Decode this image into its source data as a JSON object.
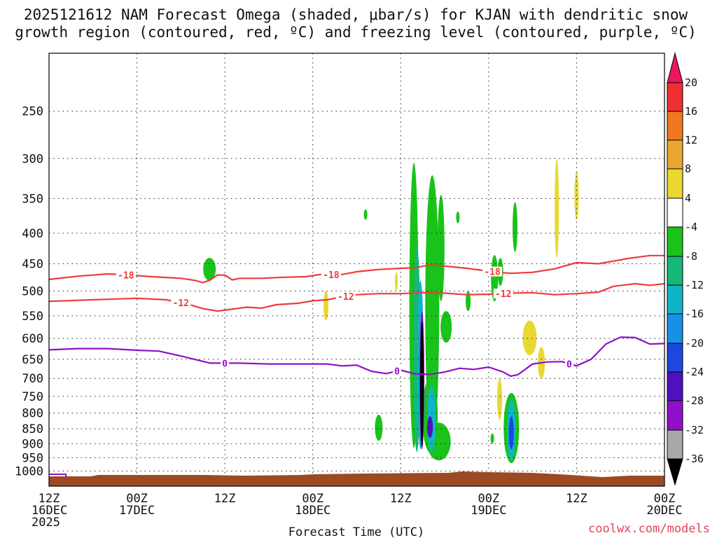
{
  "title_line1": "2025121612 NAM Forecast Omega (shaded, μbar/s) for KJAN with dendritic snow",
  "title_line2": "growth region (contoured, red, ºC) and freezing level (contoured, purple, ºC)",
  "credit": "coolwx.com/models",
  "xlabel": "Forecast Time (UTC)",
  "chart_data": {
    "type": "heatmap",
    "title": "2025121612 NAM Forecast Omega (shaded, μbar/s) for KJAN with dendritic snow growth region (contoured, red, ºC) and freezing level (contoured, purple, ºC)",
    "xlabel": "Forecast Time (UTC)",
    "ylabel": "",
    "x_range_hours": [
      0,
      84
    ],
    "y_range_hpa": [
      1060,
      200
    ],
    "y_scale": "log",
    "y_ticks": [
      250,
      300,
      350,
      400,
      450,
      500,
      550,
      600,
      650,
      700,
      750,
      800,
      850,
      900,
      950,
      1000
    ],
    "x_ticks": [
      {
        "hour": 0,
        "line1": "12Z",
        "line2": "16DEC",
        "line3": "2025"
      },
      {
        "hour": 12,
        "line1": "00Z",
        "line2": "17DEC",
        "line3": ""
      },
      {
        "hour": 24,
        "line1": "12Z",
        "line2": "",
        "line3": ""
      },
      {
        "hour": 36,
        "line1": "00Z",
        "line2": "18DEC",
        "line3": ""
      },
      {
        "hour": 48,
        "line1": "12Z",
        "line2": "",
        "line3": ""
      },
      {
        "hour": 60,
        "line1": "00Z",
        "line2": "19DEC",
        "line3": ""
      },
      {
        "hour": 72,
        "line1": "12Z",
        "line2": "",
        "line3": ""
      },
      {
        "hour": 84,
        "line1": "00Z",
        "line2": "20DEC",
        "line3": ""
      }
    ],
    "grid": true,
    "colorbar": {
      "labels": [
        "20",
        "16",
        "12",
        "8",
        "4",
        "-4",
        "-8",
        "-12",
        "-16",
        "-20",
        "-24",
        "-28",
        "-32",
        "-36"
      ],
      "colors": [
        "#e8185a",
        "#ee3030",
        "#f07820",
        "#e8a830",
        "#e8d830",
        "#ffffff",
        "#19c319",
        "#14b878",
        "#10b4c8",
        "#1890e8",
        "#1c48e0",
        "#5010c0",
        "#9010c8",
        "#a8a8a8",
        "#000000"
      ]
    },
    "contours": [
      {
        "name": "-18",
        "color": "#ee3b3b",
        "label_hours": [
          10.5,
          38.5,
          60.5
        ],
        "points": [
          [
            0,
            478
          ],
          [
            4,
            472
          ],
          [
            8,
            468
          ],
          [
            11,
            470
          ],
          [
            14,
            473
          ],
          [
            18,
            476
          ],
          [
            20,
            480
          ],
          [
            21,
            484
          ],
          [
            22,
            479
          ],
          [
            23,
            470
          ],
          [
            24,
            470
          ],
          [
            25,
            479
          ],
          [
            26,
            476
          ],
          [
            29,
            476
          ],
          [
            32,
            474
          ],
          [
            35,
            473
          ],
          [
            37,
            469
          ],
          [
            40,
            469
          ],
          [
            42,
            464
          ],
          [
            45,
            460
          ],
          [
            48,
            458
          ],
          [
            50,
            457
          ],
          [
            52,
            452
          ],
          [
            54,
            454
          ],
          [
            57,
            458
          ],
          [
            60,
            463
          ],
          [
            63,
            467
          ],
          [
            66,
            465
          ],
          [
            69,
            459
          ],
          [
            72,
            448
          ],
          [
            75,
            450
          ],
          [
            79,
            441
          ],
          [
            82,
            436
          ],
          [
            84,
            436
          ]
        ]
      },
      {
        "name": "-12",
        "color": "#ee3b3b",
        "label_hours": [
          18,
          40.5,
          62
        ],
        "points": [
          [
            0,
            520
          ],
          [
            4,
            518
          ],
          [
            8,
            516
          ],
          [
            12,
            514
          ],
          [
            16,
            517
          ],
          [
            19,
            526
          ],
          [
            21,
            535
          ],
          [
            23,
            540
          ],
          [
            25,
            536
          ],
          [
            27,
            532
          ],
          [
            29,
            534
          ],
          [
            31,
            527
          ],
          [
            34,
            524
          ],
          [
            36,
            519
          ],
          [
            38,
            517
          ],
          [
            40,
            511
          ],
          [
            42,
            507
          ],
          [
            45,
            505
          ],
          [
            48,
            505
          ],
          [
            51,
            503
          ],
          [
            54,
            504
          ],
          [
            57,
            507
          ],
          [
            60,
            506
          ],
          [
            63,
            504
          ],
          [
            66,
            503
          ],
          [
            69,
            507
          ],
          [
            72,
            505
          ],
          [
            75,
            502
          ],
          [
            77,
            491
          ],
          [
            80,
            486
          ],
          [
            82,
            489
          ],
          [
            84,
            486
          ]
        ]
      },
      {
        "name": "0",
        "color": "#9010c8",
        "label_hours": [
          24,
          47.5,
          71
        ],
        "points": [
          [
            0,
            627
          ],
          [
            4,
            624
          ],
          [
            8,
            624
          ],
          [
            12,
            628
          ],
          [
            15,
            630
          ],
          [
            18,
            642
          ],
          [
            20,
            651
          ],
          [
            22,
            660
          ],
          [
            26,
            660
          ],
          [
            30,
            662
          ],
          [
            35,
            662
          ],
          [
            38,
            662
          ],
          [
            40,
            667
          ],
          [
            42,
            665
          ],
          [
            44,
            681
          ],
          [
            46,
            687
          ],
          [
            48,
            678
          ],
          [
            50,
            688
          ],
          [
            52,
            689
          ],
          [
            54,
            683
          ],
          [
            56,
            673
          ],
          [
            58,
            676
          ],
          [
            60,
            670
          ],
          [
            62,
            683
          ],
          [
            63,
            694
          ],
          [
            64,
            690
          ],
          [
            66,
            662
          ],
          [
            68,
            657
          ],
          [
            70,
            656
          ],
          [
            72,
            667
          ],
          [
            74,
            650
          ],
          [
            76,
            613
          ],
          [
            78,
            597
          ],
          [
            80,
            598
          ],
          [
            82,
            613
          ],
          [
            84,
            612
          ]
        ]
      }
    ]
  }
}
